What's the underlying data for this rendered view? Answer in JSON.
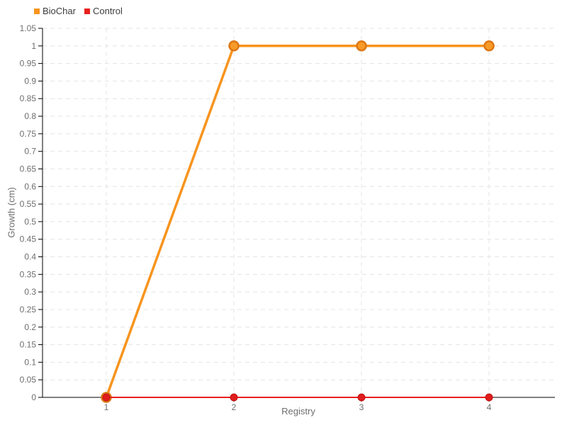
{
  "chart_data": {
    "type": "line",
    "x": [
      1,
      2,
      3,
      4
    ],
    "x_ticks": [
      "1",
      "2",
      "3",
      "4"
    ],
    "y_ticks": [
      "0",
      "0.05",
      "0.1",
      "0.15",
      "0.2",
      "0.25",
      "0.3",
      "0.35",
      "0.4",
      "0.45",
      "0.5",
      "0.55",
      "0.6",
      "0.65",
      "0.7",
      "0.75",
      "0.8",
      "0.85",
      "0.9",
      "0.95",
      "1",
      "1.05"
    ],
    "y_tick_values": [
      0,
      0.05,
      0.1,
      0.15,
      0.2,
      0.25,
      0.3,
      0.35,
      0.4,
      0.45,
      0.5,
      0.55,
      0.6,
      0.65,
      0.7,
      0.75,
      0.8,
      0.85,
      0.9,
      0.95,
      1,
      1.05
    ],
    "ylim": [
      0,
      1.05
    ],
    "xlabel": "Registry",
    "ylabel": "Growth (cm)",
    "grid": "dashed",
    "legend_position": "top-left",
    "series": [
      {
        "name": "BioChar",
        "values": [
          0,
          1,
          1,
          1
        ],
        "line_color": "#F7941E",
        "marker_fill": "#F89B28",
        "marker_stroke": "#DD7714"
      },
      {
        "name": "Control",
        "values": [
          0,
          0,
          0,
          0
        ],
        "line_color": "#E8201F",
        "marker_fill": "#E01D1C",
        "marker_stroke": "#C01414"
      }
    ],
    "colors": {
      "axis": "#000000",
      "grid": "#E4E4E4",
      "tick_label": "#6E6E6E",
      "legend_text": "#3C3C3C"
    }
  }
}
